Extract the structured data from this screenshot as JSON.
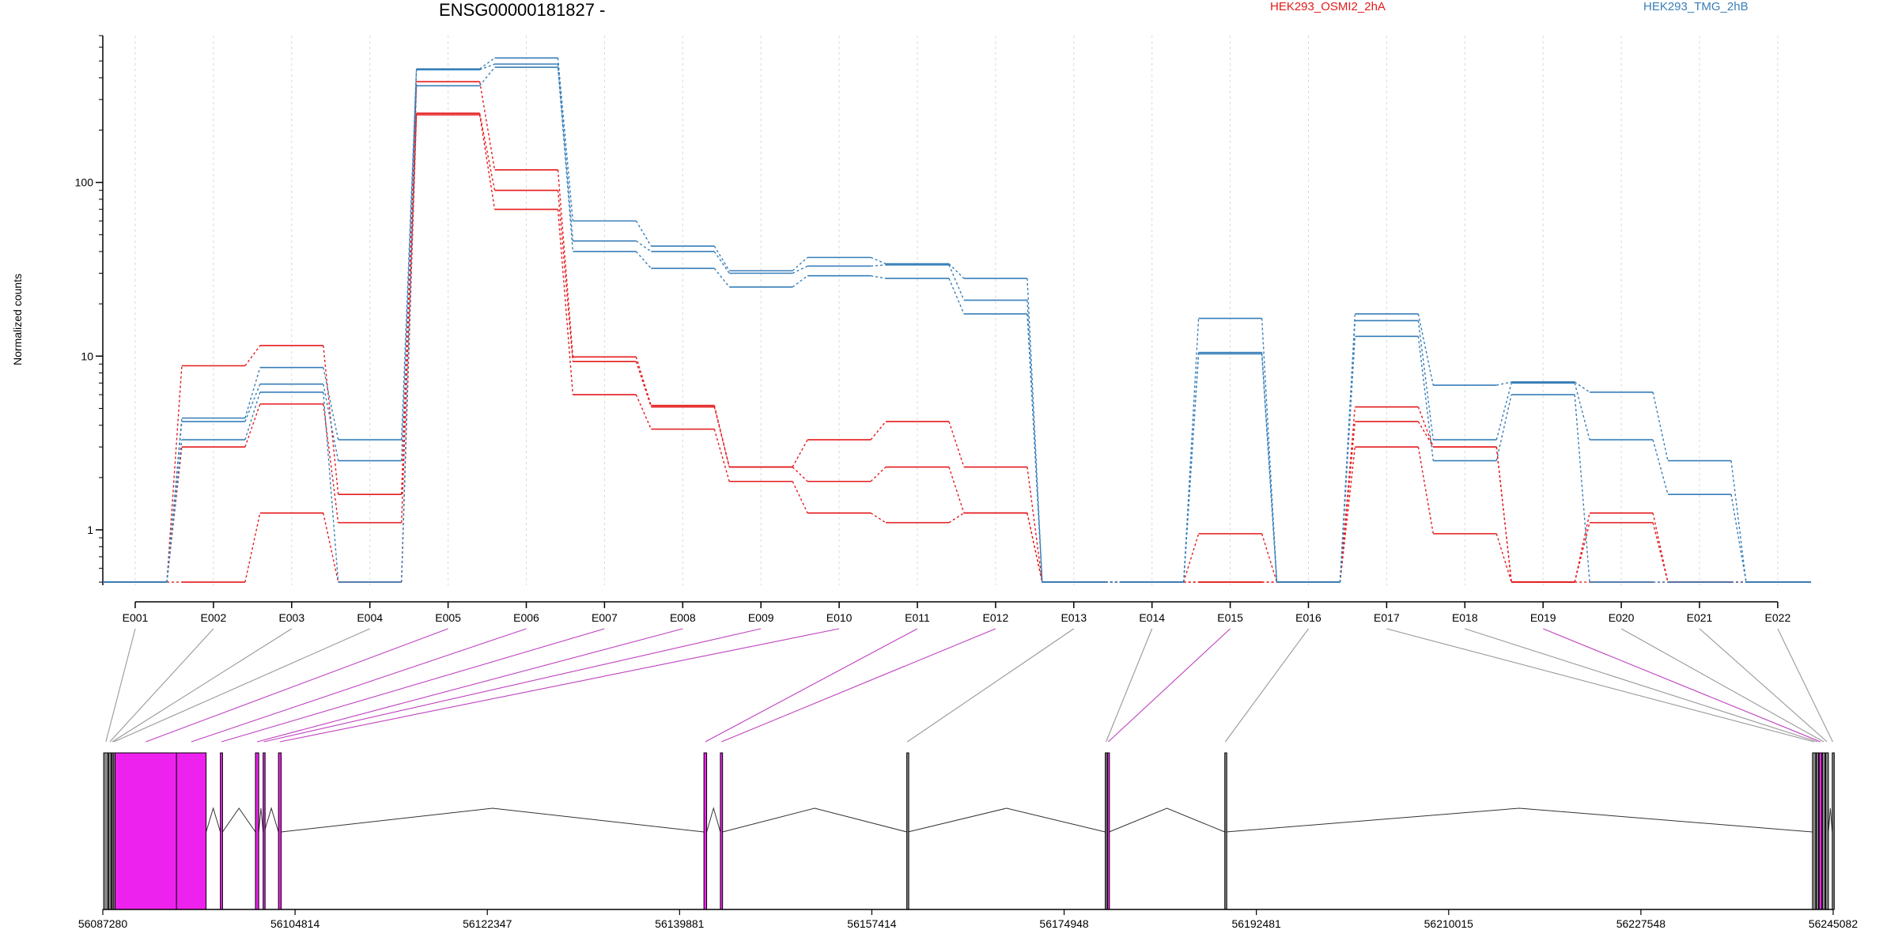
{
  "chart_data": {
    "type": "line",
    "title": "ENSG00000181827 -",
    "ylabel": "Normalized counts",
    "yscale": "log",
    "ylim": [
      0.48,
      700
    ],
    "yticks": [
      1,
      10,
      100
    ],
    "ytick_labels": [
      "1",
      "10",
      "100"
    ],
    "grid": "vertical dotted per exon",
    "categories": [
      "E001",
      "E002",
      "E003",
      "E004",
      "E005",
      "E006",
      "E007",
      "E008",
      "E009",
      "E010",
      "E011",
      "E012",
      "E013",
      "E014",
      "E015",
      "E016",
      "E017",
      "E018",
      "E019",
      "E020",
      "E021",
      "E022"
    ],
    "legend": [
      {
        "label": "HEK293_OSMI2_2hA",
        "color": "#e41a1c",
        "position": "top-center"
      },
      {
        "label": "HEK293_TMG_2hB",
        "color": "#377eb8",
        "position": "top-right"
      }
    ],
    "series": [
      {
        "group": "HEK293_OSMI2_2hA",
        "color": "#e41a1c",
        "values": [
          0.5,
          8.8,
          11.5,
          1.6,
          380,
          118,
          9.9,
          5.2,
          2.3,
          3.3,
          4.2,
          2.3,
          0.5,
          0.5,
          0.95,
          0.5,
          5.1,
          3.0,
          0.5,
          1.25,
          0.5,
          0.5
        ]
      },
      {
        "group": "HEK293_OSMI2_2hA",
        "color": "#e41a1c",
        "values": [
          0.5,
          3.0,
          5.3,
          1.1,
          250,
          90,
          9.3,
          5.1,
          2.3,
          1.9,
          2.3,
          1.25,
          0.5,
          0.5,
          0.5,
          0.5,
          4.2,
          3.0,
          0.5,
          1.1,
          0.5,
          0.5
        ]
      },
      {
        "group": "HEK293_OSMI2_2hA",
        "color": "#e41a1c",
        "values": [
          0.5,
          0.5,
          1.25,
          0.5,
          245,
          70,
          6.0,
          3.8,
          1.9,
          1.25,
          1.1,
          1.25,
          0.5,
          0.5,
          0.5,
          0.5,
          3.0,
          0.95,
          0.5,
          0.5,
          0.5,
          0.5
        ]
      },
      {
        "group": "HEK293_TMG_2hB",
        "color": "#377eb8",
        "values": [
          0.5,
          4.4,
          8.6,
          3.3,
          450,
          520,
          60,
          43,
          31,
          37,
          34,
          28,
          0.5,
          0.5,
          16.5,
          0.5,
          17.5,
          6.8,
          7.1,
          6.2,
          2.5,
          0.5
        ]
      },
      {
        "group": "HEK293_TMG_2hB",
        "color": "#377eb8",
        "values": [
          0.5,
          4.2,
          6.9,
          2.5,
          445,
          480,
          46,
          40,
          30,
          33,
          33.5,
          21,
          0.5,
          0.5,
          10.5,
          0.5,
          16,
          3.3,
          7.0,
          3.3,
          1.6,
          0.5
        ]
      },
      {
        "group": "HEK293_TMG_2hB",
        "color": "#377eb8",
        "values": [
          0.5,
          3.3,
          6.2,
          0.5,
          360,
          460,
          40,
          32,
          25,
          29,
          28,
          17.5,
          0.5,
          0.5,
          10.3,
          0.5,
          13,
          2.5,
          6.0,
          0.5,
          0.5,
          0.5
        ]
      }
    ],
    "gene_model": {
      "genomic_ticks": [
        "56087280",
        "56104814",
        "56122347",
        "56139881",
        "56157414",
        "56174948",
        "56192481",
        "56210015",
        "56227548",
        "56245082"
      ],
      "genomic_start": 56087280,
      "genomic_end": 56245082,
      "exon_color": "#ee22ee",
      "exons": [
        {
          "id": "E001",
          "start": 56087360,
          "end": 56087760,
          "color": "grey"
        },
        {
          "id": "E002",
          "start": 56087800,
          "end": 56088040,
          "color": "grey"
        },
        {
          "id": "E003",
          "start": 56088080,
          "end": 56088200,
          "color": "grey"
        },
        {
          "id": "E004",
          "start": 56088230,
          "end": 56088360,
          "color": "grey"
        },
        {
          "id": "E005",
          "start": 56088400,
          "end": 56094000,
          "color": "magenta"
        },
        {
          "id": "E006",
          "start": 56094000,
          "end": 56096700,
          "color": "magenta"
        },
        {
          "id": "E007",
          "start": 56098000,
          "end": 56098200,
          "color": "magenta"
        },
        {
          "id": "E008",
          "start": 56101200,
          "end": 56101500,
          "color": "magenta"
        },
        {
          "id": "E009",
          "start": 56101900,
          "end": 56102000,
          "color": "magenta"
        },
        {
          "id": "E010",
          "start": 56103300,
          "end": 56103550,
          "color": "magenta"
        },
        {
          "id": "E011",
          "start": 56142100,
          "end": 56142350,
          "color": "magenta"
        },
        {
          "id": "E012",
          "start": 56143600,
          "end": 56143800,
          "color": "magenta"
        },
        {
          "id": "E013",
          "start": 56160600,
          "end": 56160700,
          "color": "grey"
        },
        {
          "id": "E014",
          "start": 56178700,
          "end": 56178850,
          "color": "grey"
        },
        {
          "id": "E015",
          "start": 56178900,
          "end": 56179050,
          "color": "magenta"
        },
        {
          "id": "E016",
          "start": 56189600,
          "end": 56189700,
          "color": "grey"
        },
        {
          "id": "E017",
          "start": 56243200,
          "end": 56243500,
          "color": "grey"
        },
        {
          "id": "E018",
          "start": 56243550,
          "end": 56243750,
          "color": "grey"
        },
        {
          "id": "E019",
          "start": 56243800,
          "end": 56244050,
          "color": "magenta"
        },
        {
          "id": "E020",
          "start": 56244100,
          "end": 56244350,
          "color": "grey"
        },
        {
          "id": "E021",
          "start": 56244400,
          "end": 56244650,
          "color": "grey"
        },
        {
          "id": "E022",
          "start": 56245000,
          "end": 56245082,
          "color": "grey"
        }
      ]
    }
  }
}
